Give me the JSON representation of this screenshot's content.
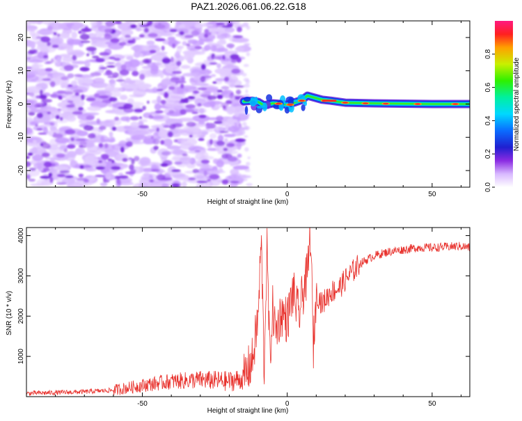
{
  "title": "PAZ1.2026.061.06.22.G18",
  "chart_data": [
    {
      "type": "heatmap",
      "name": "spectrogram",
      "xlabel": "Height of straight line (km)",
      "ylabel": "Frequency (Hz)",
      "xlim": [
        -90,
        63
      ],
      "ylim": [
        -25,
        25
      ],
      "xticks": [
        -50,
        0,
        50
      ],
      "xtick_labels": [
        "-50",
        "0",
        "50"
      ],
      "yticks": [
        -20,
        -10,
        0,
        10,
        20
      ],
      "ytick_labels": [
        "-20",
        "-10",
        "0",
        "10",
        "20"
      ],
      "noise_region_x": [
        -90,
        -15
      ],
      "signal_track": {
        "x": [
          -15,
          -12,
          -10,
          -8,
          -5,
          -2,
          0,
          3,
          5,
          7,
          9,
          12,
          15,
          20,
          30,
          40,
          50,
          63
        ],
        "frequency": [
          0.8,
          1.0,
          0.6,
          -0.4,
          0.2,
          0.0,
          -0.2,
          0.6,
          1.2,
          2.5,
          2.0,
          1.3,
          1.0,
          0.4,
          0.2,
          0.1,
          0.0,
          0.0
        ]
      },
      "colorbar": {
        "label": "Normalized spectral amplitude",
        "range": [
          0.0,
          1.0
        ],
        "ticks": [
          0.0,
          0.2,
          0.4,
          0.6,
          0.8
        ],
        "tick_labels": [
          "0.0",
          "0.2",
          "0.4",
          "0.6",
          "0.8"
        ]
      }
    },
    {
      "type": "line",
      "name": "snr",
      "xlabel": "Height of straight line (km)",
      "ylabel": "SNR (10 * v/v)",
      "xlim": [
        -90,
        63
      ],
      "ylim": [
        0,
        4200
      ],
      "xticks": [
        -50,
        0,
        50
      ],
      "xtick_labels": [
        "-50",
        "0",
        "50"
      ],
      "yticks": [
        1000,
        2000,
        3000,
        4000
      ],
      "ytick_labels": [
        "1000",
        "2000",
        "3000",
        "4000"
      ],
      "series": [
        {
          "name": "SNR",
          "color": "#e8312c",
          "x": [
            -90,
            -80,
            -70,
            -60,
            -55,
            -50,
            -45,
            -40,
            -35,
            -30,
            -25,
            -20,
            -15,
            -12,
            -10,
            -9,
            -8.5,
            -8,
            -7,
            -6,
            -5,
            -4,
            -2,
            0,
            2,
            4,
            6,
            7,
            8,
            9,
            10,
            12,
            15,
            18,
            20,
            25,
            30,
            35,
            40,
            45,
            50,
            55,
            60,
            63
          ],
          "values": [
            80,
            100,
            120,
            160,
            220,
            280,
            330,
            380,
            400,
            420,
            400,
            380,
            450,
            900,
            2000,
            3900,
            2500,
            600,
            3700,
            900,
            2200,
            1600,
            2100,
            1900,
            2600,
            2000,
            2800,
            3000,
            4150,
            1200,
            2600,
            2300,
            2600,
            2700,
            2900,
            3300,
            3500,
            3600,
            3650,
            3700,
            3700,
            3720,
            3740,
            3700
          ]
        }
      ]
    }
  ]
}
